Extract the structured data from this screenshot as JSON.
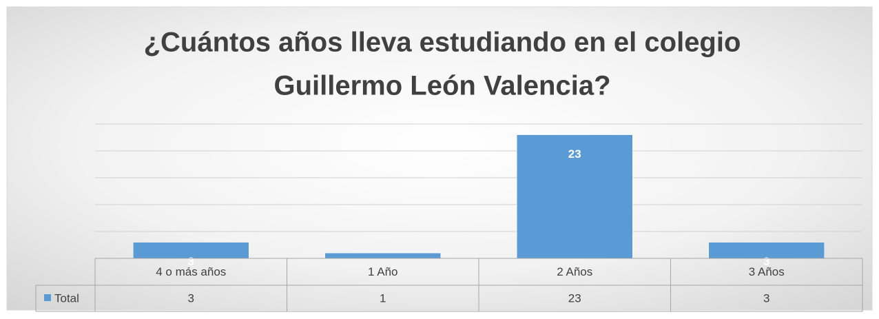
{
  "chart_data": {
    "type": "bar",
    "title": [
      "¿Cuántos años lleva  estudiando en el colegio",
      "Guillermo León Valencia?"
    ],
    "categories": [
      "4 o más años",
      "1 Año",
      "2 Años",
      "3 Años"
    ],
    "series": [
      {
        "name": "Total",
        "color": "#5b9bd5",
        "values": [
          3,
          1,
          23,
          3
        ]
      }
    ],
    "ylim": [
      0,
      25
    ],
    "yticks": [
      0,
      5,
      10,
      15,
      20,
      25
    ],
    "grid": true
  }
}
